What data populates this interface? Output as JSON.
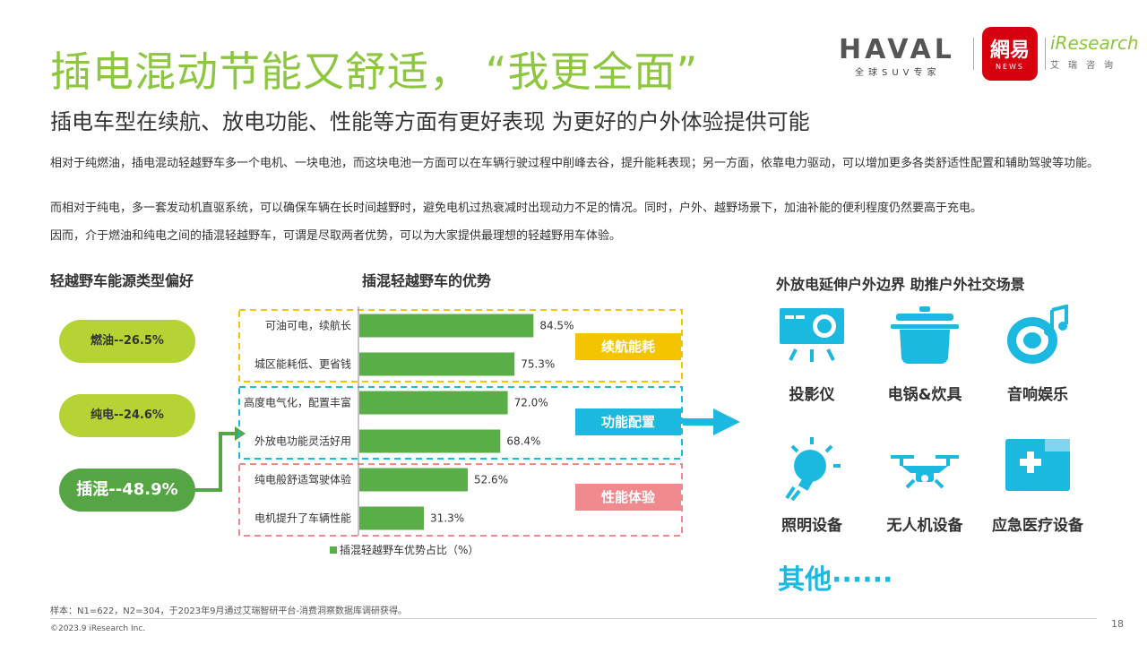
{
  "title": "插电混动节能又舒适，  “我更全面”",
  "subtitle": "插电车型在续航、放电功能、性能等方面有更好表现 为更好的户外体验提供可能",
  "logos": {
    "haval": "HAVAL",
    "haval_sub": "全球SUV专家",
    "netease_main": "網易",
    "netease_sub": "NEWS",
    "iresearch_main": "iResearch",
    "iresearch_sub": "艾瑞咨询"
  },
  "paragraphs": [
    "相对于纯燃油，插电混动轻越野车多一个电机、一块电池，而这块电池一方面可以在车辆行驶过程中削峰去谷，提升能耗表现；另一方面，依靠电力驱动，可以增加更多各类舒适性配置和辅助驾驶等功能。",
    "而相对于纯电，多一套发动机直驱系统，可以确保车辆在长时间越野时，避免电机过热衰减时出现动力不足的情况。同时，户外、越野场景下，加油补能的便利程度仍然要高于充电。",
    "因而，介于燃油和纯电之间的插混轻越野车，可谓是尽取两者优势，可以为大家提供最理想的轻越野用车体验。"
  ],
  "left_section": {
    "label": "轻越野车能源类型偏好",
    "items": [
      {
        "label": "燃油--26.5%"
      },
      {
        "label": "纯电--24.6%"
      },
      {
        "label": "插混--48.9%"
      }
    ]
  },
  "chart_data": {
    "type": "bar",
    "orientation": "horizontal",
    "title": "插混轻越野车的优势",
    "categories": [
      "可油可电，续航长",
      "城区能耗低、更省钱",
      "高度电气化，配置丰富",
      "外放电功能灵活好用",
      "纯电般舒适驾驶体验",
      "电机提升了车辆性能"
    ],
    "series": [
      {
        "name": "插混轻越野车优势占比（%）",
        "values": [
          84.5,
          75.3,
          72.0,
          68.4,
          52.6,
          31.3
        ],
        "color": "#5aae47"
      }
    ],
    "value_labels": [
      "84.5%",
      "75.3%",
      "72.0%",
      "68.4%",
      "52.6%",
      "31.3%"
    ],
    "xlim": [
      0,
      100
    ],
    "legend": "bottom",
    "groups": [
      {
        "label": "续航能耗",
        "color": "#f5c400",
        "rows": [
          0,
          1
        ]
      },
      {
        "label": "功能配置",
        "color": "#1bb8e0",
        "rows": [
          2,
          3
        ]
      },
      {
        "label": "性能体验",
        "color": "#f08a8f",
        "rows": [
          4,
          5
        ]
      }
    ]
  },
  "right_section": {
    "label": "外放电延伸户外边界 助推户外社交场景",
    "icons": [
      {
        "label": "投影仪",
        "icon": "projector-icon"
      },
      {
        "label": "电锅&炊具",
        "icon": "pot-icon"
      },
      {
        "label": "音响娱乐",
        "icon": "speaker-icon"
      },
      {
        "label": "照明设备",
        "icon": "bulb-icon"
      },
      {
        "label": "无人机设备",
        "icon": "drone-icon"
      },
      {
        "label": "应急医疗设备",
        "icon": "medical-kit-icon"
      }
    ],
    "other": "其他······",
    "icon_color": "#1bb8e0"
  },
  "footnote": "样本：N1=622，N2=304，于2023年9月通过艾瑞智研平台-消费洞察数据库调研获得。",
  "copyright": "©2023.9 iResearch Inc.",
  "page_number": "18"
}
